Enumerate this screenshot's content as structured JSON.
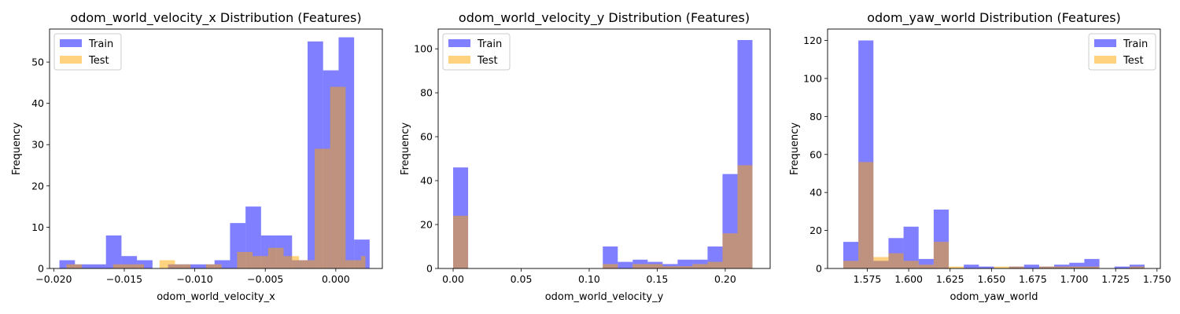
{
  "colors": {
    "train": "#0000ff",
    "test": "#ffa500",
    "bar_alpha": 0.5,
    "legend_edge": "#cccccc"
  },
  "chart_data": [
    {
      "type": "bar",
      "title": "odom_world_velocity_x Distribution (Features)",
      "xlabel": "odom_world_velocity_x",
      "ylabel": "Frequency",
      "xlim": [
        -0.0203,
        0.0033
      ],
      "ylim": [
        0,
        58
      ],
      "xticks": [
        -0.02,
        -0.015,
        -0.01,
        -0.005,
        0.0
      ],
      "xtick_labels": [
        "−0.020",
        "−0.015",
        "−0.010",
        "−0.005",
        "0.000"
      ],
      "yticks": [
        0,
        10,
        20,
        30,
        40,
        50
      ],
      "legend": {
        "position": "upper-left",
        "entries": [
          "Train",
          "Test"
        ]
      },
      "series": [
        {
          "name": "Train",
          "bin_edges": [
            -0.0196,
            -0.0185,
            -0.0174,
            -0.0163,
            -0.0152,
            -0.0141,
            -0.013,
            -0.0119,
            -0.0108,
            -0.0097,
            -0.0086,
            -0.0075,
            -0.0064,
            -0.0053,
            -0.0042,
            -0.0031,
            -0.002,
            -0.0009,
            0.0002,
            0.0013,
            0.0024
          ],
          "values": [
            2,
            1,
            1,
            8,
            3,
            2,
            0,
            1,
            1,
            1,
            2,
            11,
            15,
            8,
            8,
            2,
            55,
            48,
            56,
            7
          ]
        },
        {
          "name": "Test",
          "bin_edges": [
            -0.0191,
            -0.018,
            -0.0169,
            -0.0158,
            -0.0147,
            -0.0136,
            -0.0125,
            -0.0114,
            -0.0103,
            -0.0092,
            -0.0081,
            -0.007,
            -0.0059,
            -0.0048,
            -0.0037,
            -0.0026,
            -0.0015,
            -0.0004,
            0.0007,
            0.0018,
            0.0021
          ],
          "values": [
            1,
            0,
            0,
            1,
            1,
            0,
            2,
            1,
            0,
            1,
            0,
            4,
            3,
            5,
            3,
            2,
            29,
            44,
            2,
            3
          ]
        }
      ]
    },
    {
      "type": "bar",
      "title": "odom_world_velocity_y Distribution (Features)",
      "xlabel": "odom_world_velocity_y",
      "ylabel": "Frequency",
      "xlim": [
        -0.011,
        0.233
      ],
      "ylim": [
        0,
        109
      ],
      "xticks": [
        0.0,
        0.05,
        0.1,
        0.15,
        0.2
      ],
      "xtick_labels": [
        "0.00",
        "0.05",
        "0.10",
        "0.15",
        "0.20"
      ],
      "yticks": [
        0,
        20,
        40,
        60,
        80,
        100
      ],
      "legend": {
        "position": "upper-left",
        "entries": [
          "Train",
          "Test"
        ]
      },
      "series": [
        {
          "name": "Train",
          "bin_edges": [
            0.0,
            0.011,
            0.022,
            0.033,
            0.044,
            0.055,
            0.066,
            0.077,
            0.088,
            0.099,
            0.11,
            0.121,
            0.132,
            0.143,
            0.154,
            0.165,
            0.176,
            0.187,
            0.198,
            0.209,
            0.22
          ],
          "values": [
            46,
            0,
            0,
            0,
            0,
            0,
            0,
            0,
            0,
            0,
            10,
            3,
            4,
            3,
            2,
            4,
            4,
            10,
            43,
            104
          ]
        },
        {
          "name": "Test",
          "bin_edges": [
            0.0,
            0.011,
            0.022,
            0.033,
            0.044,
            0.055,
            0.066,
            0.077,
            0.088,
            0.099,
            0.11,
            0.121,
            0.132,
            0.143,
            0.154,
            0.165,
            0.176,
            0.187,
            0.198,
            0.209,
            0.22
          ],
          "values": [
            24,
            0,
            0,
            0,
            0,
            0,
            0,
            0,
            0,
            0,
            2,
            0,
            2,
            2,
            1,
            1,
            2,
            3,
            16,
            47
          ]
        }
      ]
    },
    {
      "type": "bar",
      "title": "odom_yaw_world Distribution (Features)",
      "xlabel": "odom_yaw_world",
      "ylabel": "Frequency",
      "xlim": [
        1.551,
        1.752
      ],
      "ylim": [
        0,
        126
      ],
      "xticks": [
        1.575,
        1.6,
        1.625,
        1.65,
        1.675,
        1.7,
        1.725,
        1.75
      ],
      "xtick_labels": [
        "1.575",
        "1.600",
        "1.625",
        "1.650",
        "1.675",
        "1.700",
        "1.725",
        "1.750"
      ],
      "yticks": [
        0,
        20,
        40,
        60,
        80,
        100,
        120
      ],
      "legend": {
        "position": "upper-right",
        "entries": [
          "Train",
          "Test"
        ]
      },
      "series": [
        {
          "name": "Train",
          "bin_edges": [
            1.5605,
            1.5696,
            1.5787,
            1.5878,
            1.5969,
            1.606,
            1.6151,
            1.6242,
            1.6333,
            1.6424,
            1.6515,
            1.6606,
            1.6697,
            1.6788,
            1.6879,
            1.697,
            1.7061,
            1.7152,
            1.7243,
            1.7334,
            1.7425
          ],
          "values": [
            14,
            120,
            4,
            16,
            22,
            5,
            31,
            0,
            2,
            1,
            0,
            1,
            2,
            1,
            2,
            3,
            5,
            0,
            1,
            2
          ]
        },
        {
          "name": "Test",
          "bin_edges": [
            1.5605,
            1.5696,
            1.5787,
            1.5878,
            1.5969,
            1.606,
            1.6151,
            1.6242,
            1.6333,
            1.6424,
            1.6515,
            1.6606,
            1.6697,
            1.6788,
            1.6879,
            1.697,
            1.7061,
            1.7152,
            1.7243,
            1.7334,
            1.7425
          ],
          "values": [
            4,
            56,
            6,
            8,
            4,
            2,
            14,
            1,
            0,
            0,
            1,
            1,
            0,
            1,
            1,
            1,
            1,
            0,
            0,
            1
          ]
        }
      ]
    }
  ]
}
